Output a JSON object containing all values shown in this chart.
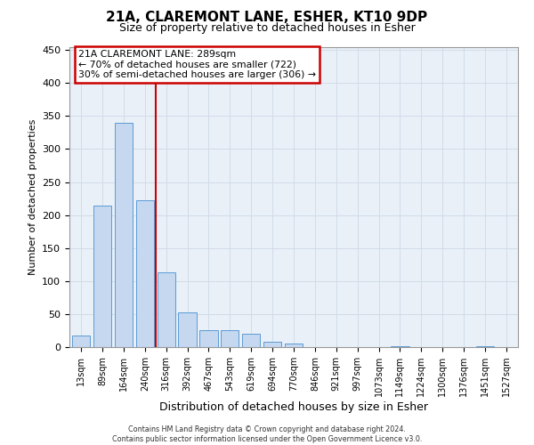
{
  "title": "21A, CLAREMONT LANE, ESHER, KT10 9DP",
  "subtitle": "Size of property relative to detached houses in Esher",
  "xlabel": "Distribution of detached houses by size in Esher",
  "ylabel": "Number of detached properties",
  "bin_labels": [
    "13sqm",
    "89sqm",
    "164sqm",
    "240sqm",
    "316sqm",
    "392sqm",
    "467sqm",
    "543sqm",
    "619sqm",
    "694sqm",
    "770sqm",
    "846sqm",
    "921sqm",
    "997sqm",
    "1073sqm",
    "1149sqm",
    "1224sqm",
    "1300sqm",
    "1376sqm",
    "1451sqm",
    "1527sqm"
  ],
  "bar_values": [
    17,
    215,
    340,
    222,
    113,
    53,
    26,
    25,
    20,
    8,
    5,
    0,
    0,
    0,
    0,
    2,
    0,
    0,
    0,
    2,
    0
  ],
  "bar_color": "#c5d8f0",
  "bar_edge_color": "#5b9bd5",
  "grid_color": "#d0dce8",
  "background_color": "#eaf0f8",
  "vline_pos": 3.5,
  "vline_color": "#cc0000",
  "annotation_title": "21A CLAREMONT LANE: 289sqm",
  "annotation_line1": "← 70% of detached houses are smaller (722)",
  "annotation_line2": "30% of semi-detached houses are larger (306) →",
  "annotation_box_color": "#cc0000",
  "ylim": [
    0,
    455
  ],
  "yticks": [
    0,
    50,
    100,
    150,
    200,
    250,
    300,
    350,
    400,
    450
  ],
  "footer_line1": "Contains HM Land Registry data © Crown copyright and database right 2024.",
  "footer_line2": "Contains public sector information licensed under the Open Government Licence v3.0."
}
